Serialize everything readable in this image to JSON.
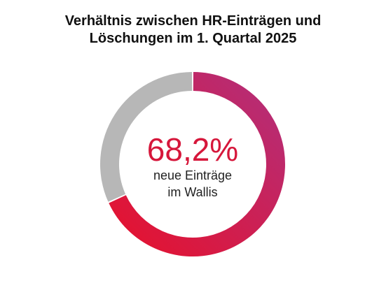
{
  "title": {
    "line1": "Verhältnis zwischen HR-Einträgen und",
    "line2": "Löschungen im 1. Quartal 2025"
  },
  "center": {
    "value": "68,2%",
    "label_line1": "neue Einträge",
    "label_line2": "im Wallis"
  },
  "colors": {
    "new_entries_start": "#e8102a",
    "new_entries_end": "#b0307e",
    "remaining": "#b7b7b7",
    "value_text": "#d6173b"
  },
  "chart_data": {
    "type": "pie",
    "variant": "donut",
    "title": "Verhältnis zwischen HR-Einträgen und Löschungen im 1. Quartal 2025",
    "slices": [
      {
        "name": "",
        "value": 68.2,
        "unit": "%"
      },
      {
        "name": "",
        "value": 31.8,
        "unit": "%"
      }
    ],
    "legend": "none"
  }
}
